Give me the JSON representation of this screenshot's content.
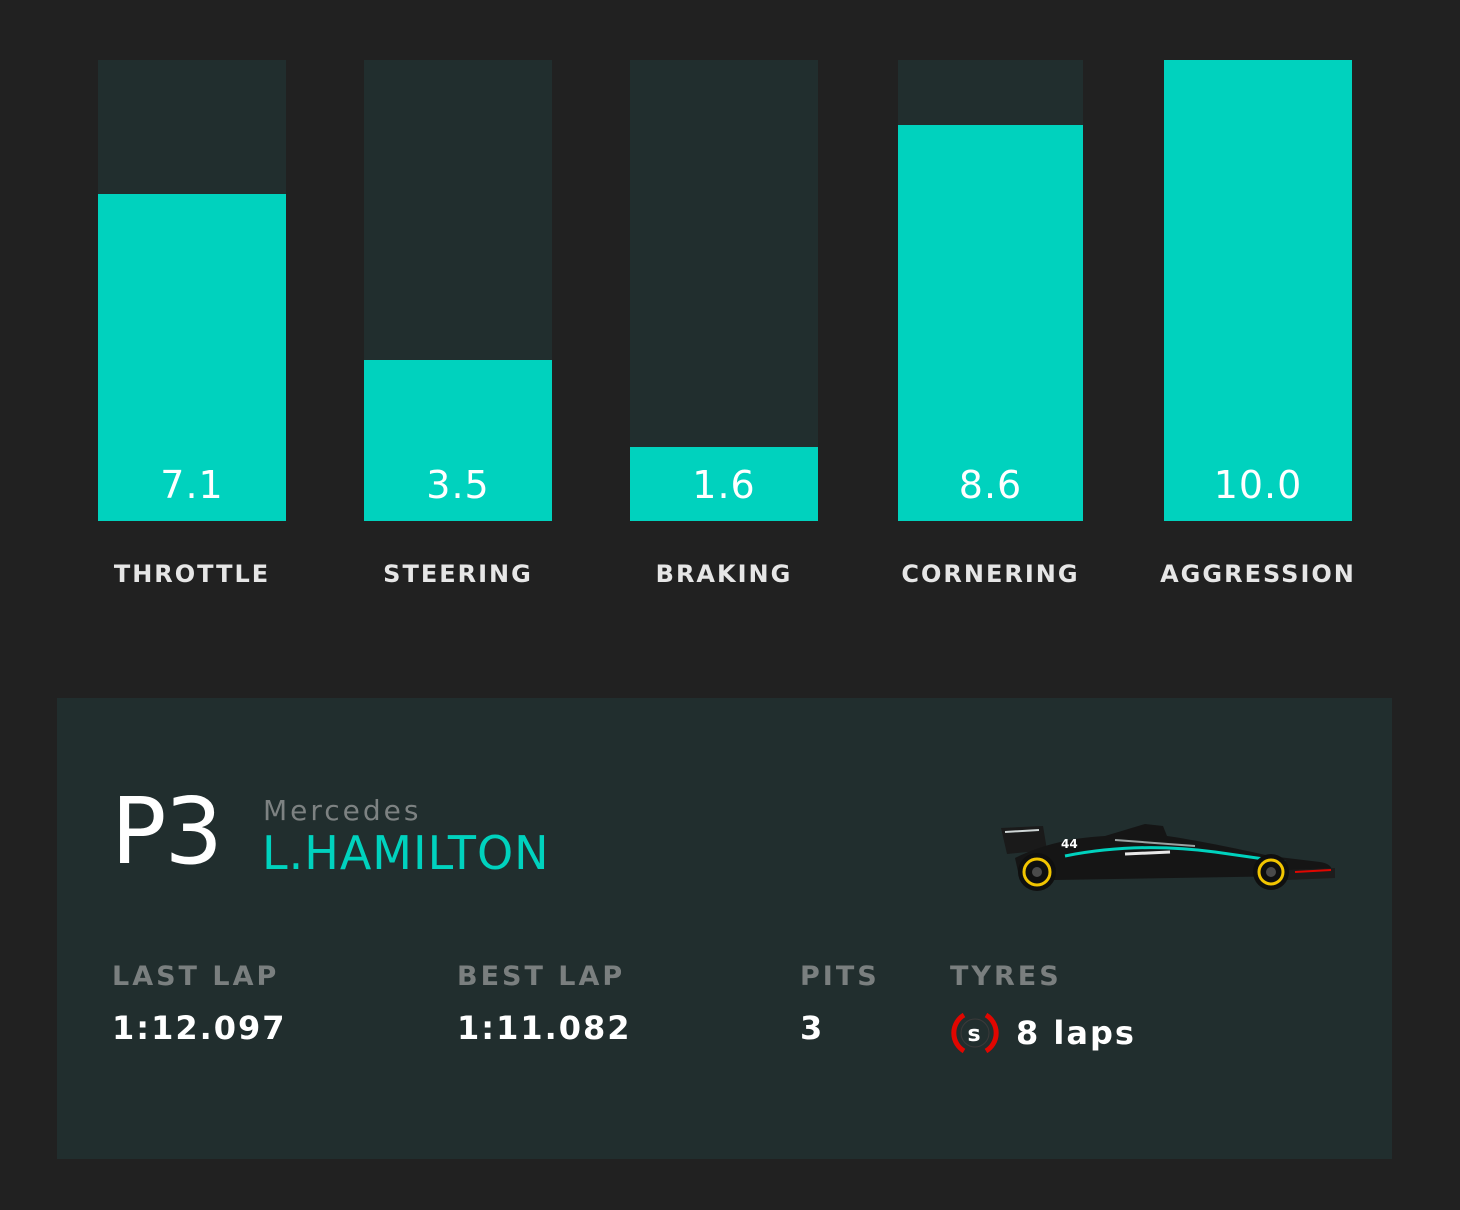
{
  "bars": [
    {
      "label": "THROTTLE",
      "value": "7.1",
      "fraction": 0.71
    },
    {
      "label": "STEERING",
      "value": "3.5",
      "fraction": 0.35
    },
    {
      "label": "BRAKING",
      "value": "1.6",
      "fraction": 0.16
    },
    {
      "label": "CORNERING",
      "value": "8.6",
      "fraction": 0.86
    },
    {
      "label": "AGGRESSION",
      "value": "10.0",
      "fraction": 1.0
    }
  ],
  "card": {
    "position": "P3",
    "team": "Mercedes",
    "driver": "L.HAMILTON",
    "car_icon": "f1-car-icon",
    "stats": {
      "last_lap_label": "LAST LAP",
      "last_lap_value": "1:12.097",
      "best_lap_label": "BEST LAP",
      "best_lap_value": "1:11.082",
      "pits_label": "PITS",
      "pits_value": "3",
      "tyres_label": "TYRES",
      "tyre_compound": "S",
      "tyre_laps": "8 laps"
    }
  },
  "colors": {
    "accent": "#00d2be",
    "panel": "#212e2e",
    "background": "#212121",
    "tyre_soft": "#e10600"
  }
}
